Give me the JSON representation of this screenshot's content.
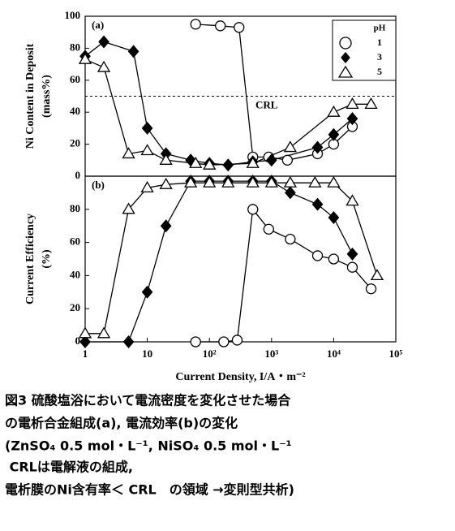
{
  "chart_data": [
    {
      "type": "scatter",
      "panel_label": "(a)",
      "y_label": [
        "Ni Content in Deposit",
        "(mass%)"
      ],
      "xscale": "log",
      "xlim": [
        1,
        100000
      ],
      "ylim": [
        0,
        100
      ],
      "yticks": [
        0,
        20,
        40,
        60,
        80,
        100
      ],
      "reference_line": {
        "value": 50,
        "label": "CRL"
      },
      "legend_title": "pH",
      "legend": "upper right",
      "series": [
        {
          "name": "1",
          "marker": "circle",
          "color": "#ffffff",
          "x": [
            60,
            150,
            300,
            500,
            900,
            1800,
            5500,
            10000,
            20000
          ],
          "values": [
            95,
            94,
            93,
            12,
            12,
            10,
            14,
            20,
            31
          ]
        },
        {
          "name": "3",
          "marker": "diamond",
          "color": "#000000",
          "x": [
            1,
            2,
            6,
            10,
            20,
            50,
            100,
            200,
            500,
            1000,
            5500,
            10000,
            20000
          ],
          "values": [
            75,
            84,
            78,
            30,
            14,
            10,
            8,
            7,
            9,
            10,
            18,
            26,
            36
          ]
        },
        {
          "name": "5",
          "marker": "triangle",
          "color": "#ffffff",
          "x": [
            1,
            2,
            5,
            10,
            20,
            60,
            100,
            500,
            2000,
            10000,
            20000,
            40000
          ],
          "values": [
            73,
            68,
            14,
            16,
            10,
            8,
            7,
            8,
            18,
            40,
            45,
            45
          ]
        }
      ]
    },
    {
      "type": "scatter",
      "panel_label": "(b)",
      "y_label": [
        "Current Efficiency",
        "(%)"
      ],
      "x_label": "Current Density, I/A・m⁻²",
      "xscale": "log",
      "xlim": [
        1,
        100000
      ],
      "ylim": [
        0,
        100
      ],
      "yticks": [
        0,
        20,
        40,
        60,
        80
      ],
      "xticks": [
        1,
        10,
        {
          "value": 100,
          "label": "10²"
        },
        {
          "value": 1000,
          "label": "10³"
        },
        {
          "value": 10000,
          "label": "10⁴"
        },
        {
          "value": 100000,
          "label": "10⁵"
        }
      ],
      "series": [
        {
          "marker": "circle",
          "color": "#ffffff",
          "x": [
            60,
            170,
            280,
            500,
            900,
            2000,
            5500,
            10000,
            20000,
            40000
          ],
          "values": [
            0,
            0,
            1,
            80,
            68,
            62,
            52,
            50,
            45,
            32
          ]
        },
        {
          "marker": "diamond",
          "color": "#000000",
          "x": [
            1,
            5,
            10,
            20,
            50,
            100,
            200,
            500,
            1000,
            2000,
            5500,
            10000,
            20000
          ],
          "values": [
            0,
            0,
            30,
            70,
            97,
            97,
            97,
            97,
            97,
            90,
            83,
            75,
            53
          ]
        },
        {
          "marker": "triangle",
          "color": "#ffffff",
          "x": [
            1,
            2,
            5,
            10,
            20,
            50,
            100,
            200,
            500,
            1000,
            2000,
            5000,
            10000,
            20000,
            50000
          ],
          "values": [
            5,
            5,
            80,
            93,
            95,
            96,
            96,
            96,
            96,
            96,
            96,
            96,
            96,
            85,
            40
          ]
        }
      ]
    }
  ],
  "caption": [
    "図3 硫酸塩浴において電流密度を変化させた場合",
    "の電析合金組成(a), 電流効率(b)の変化",
    "(ZnSO₄ 0.5 mol・L⁻¹, NiSO₄ 0.5 mol・L⁻¹",
    " CRLは電解液の組成,",
    "電析膜のNi含有率＜ CRL　の領域 →変則型共析)"
  ]
}
